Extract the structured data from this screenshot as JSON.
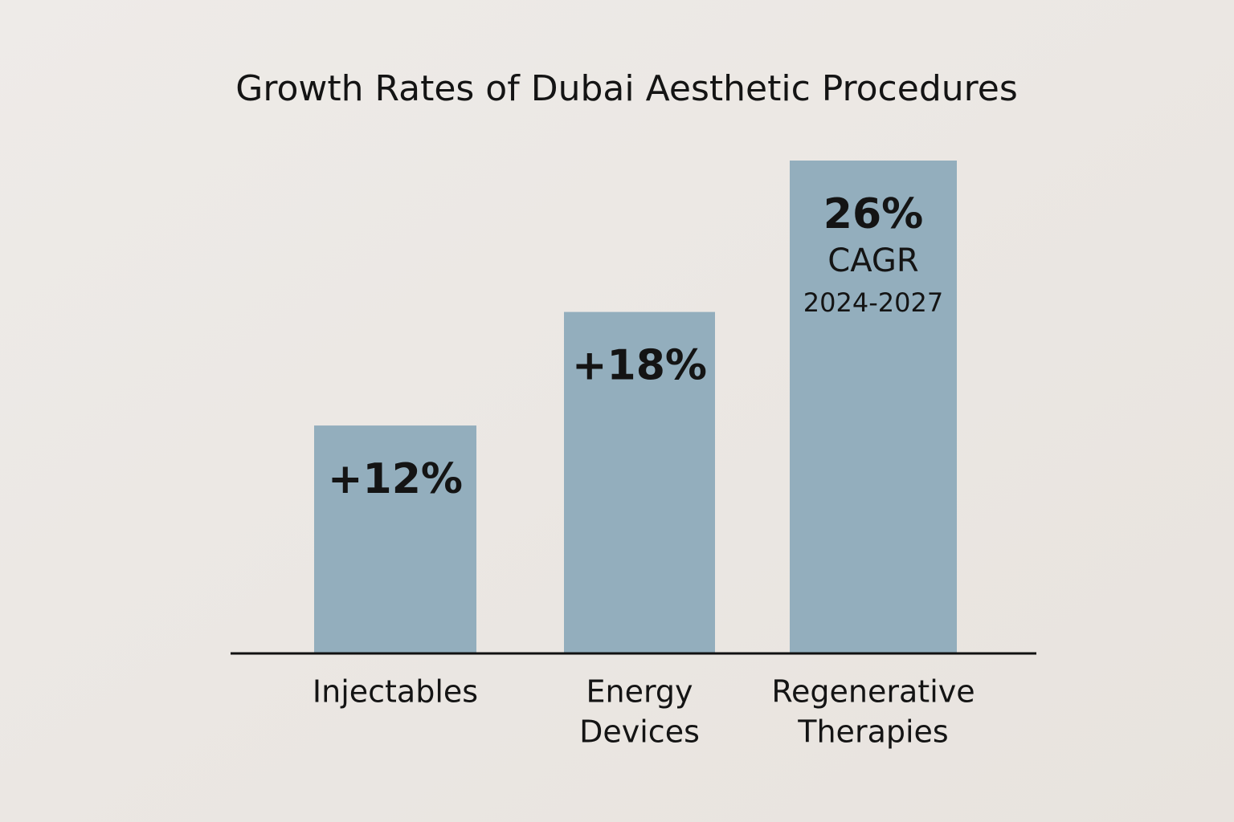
{
  "chart_data": {
    "type": "bar",
    "title": "Growth Rates of Dubai Aesthetic Procedures",
    "categories": [
      [
        "Injectables"
      ],
      [
        "Energy",
        "Devices"
      ],
      [
        "Regenerative",
        "Therapies"
      ]
    ],
    "values": [
      12,
      18,
      26
    ],
    "value_labels": [
      "+12%",
      "+18%",
      "26%"
    ],
    "annotations": [
      "CAGR",
      "2024-2027"
    ],
    "color": "#93aebd"
  }
}
